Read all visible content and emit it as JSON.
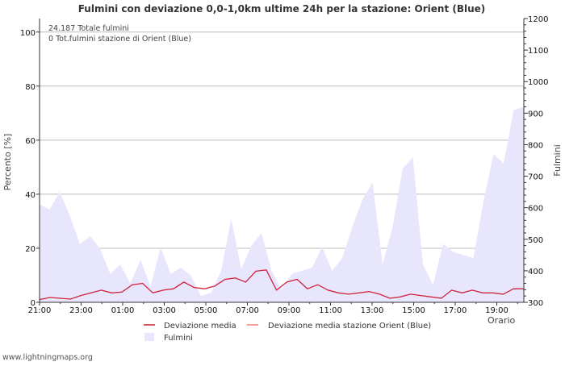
{
  "chart_data": {
    "type": "line",
    "title": "Fulmini con deviazione 0,0-1,0km ultime 24h per la stazione: Orient (Blue)",
    "xlabel": "Orario",
    "ylabel_left": "Percento   [%]",
    "ylabel_right": "Fulmini",
    "left_axis": {
      "min": 0,
      "max": 105,
      "ticks": [
        0,
        20,
        40,
        60,
        80,
        100
      ]
    },
    "right_axis": {
      "min": 300,
      "max": 1200,
      "ticks": [
        300,
        400,
        500,
        600,
        700,
        800,
        900,
        1000,
        1100,
        1200
      ]
    },
    "x_ticks": [
      "21:00",
      "23:00",
      "01:00",
      "03:00",
      "05:00",
      "07:00",
      "09:00",
      "11:00",
      "13:00",
      "15:00",
      "17:00",
      "19:00"
    ],
    "info": [
      "24.187 Totale fulmini",
      "0 Tot.fulmini stazione di Orient (Blue)"
    ],
    "legend": [
      "Deviazione media",
      "Deviazione media stazione Orient (Blue)",
      "Fulmini"
    ],
    "colors": {
      "deviazione": "#d0223a",
      "station": "#f08080",
      "fulmini_fill": "#e8e6fc",
      "grid": "#bbbbbb",
      "axis": "#333333"
    },
    "series": [
      {
        "name": "Fulmini",
        "axis": "right",
        "values": [
          610,
          595,
          650,
          575,
          485,
          510,
          470,
          390,
          420,
          360,
          435,
          350,
          475,
          390,
          410,
          385,
          320,
          330,
          400,
          565,
          405,
          480,
          520,
          400,
          340,
          390,
          400,
          410,
          475,
          400,
          440,
          540,
          625,
          680,
          420,
          540,
          725,
          760,
          420,
          355,
          485,
          460,
          450,
          440,
          620,
          770,
          740,
          910,
          920
        ]
      },
      {
        "name": "Deviazione media",
        "axis": "left",
        "values": [
          1.0,
          1.8,
          1.5,
          1.2,
          2.5,
          3.5,
          4.5,
          3.5,
          3.8,
          6.5,
          7.0,
          3.5,
          4.5,
          5.0,
          7.5,
          5.5,
          5.0,
          6.0,
          8.5,
          9.0,
          7.5,
          11.5,
          12.0,
          4.5,
          7.5,
          8.5,
          5.0,
          6.5,
          4.5,
          3.5,
          3.0,
          3.5,
          4.0,
          3.0,
          1.5,
          2.0,
          3.0,
          2.5,
          2.0,
          1.5,
          4.5,
          3.5,
          4.5,
          3.5,
          3.5,
          3.0,
          5.0,
          5.0
        ]
      },
      {
        "name": "Deviazione media stazione Orient (Blue)",
        "axis": "left",
        "values": []
      }
    ],
    "grid": true,
    "legend_position": "bottom"
  },
  "footer": "www.lightningmaps.org"
}
